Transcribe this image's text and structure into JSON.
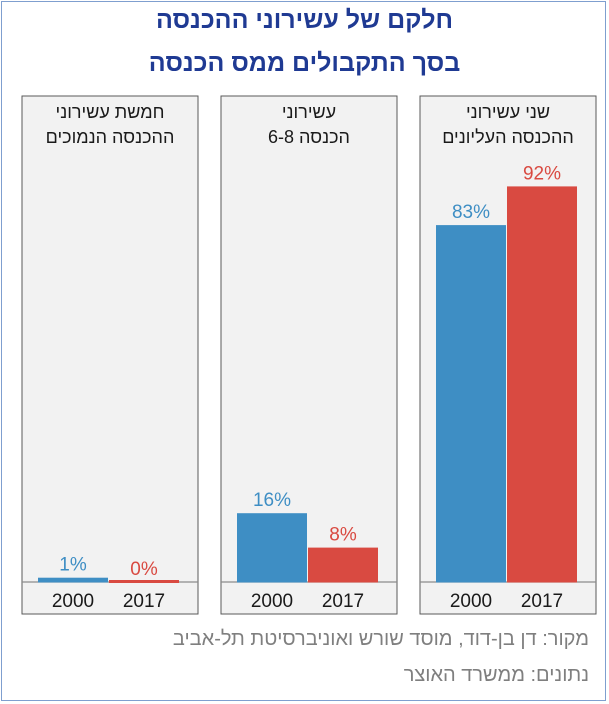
{
  "chart_data": {
    "type": "bar",
    "title_lines": [
      "חלקם של עשירוני ההכנסה",
      "בסך התקבולים ממס הכנסה"
    ],
    "categories": [
      "2000",
      "2017"
    ],
    "groups": [
      {
        "title_lines": [
          "חמשת עשירוני",
          "ההכנסה הנמוכים"
        ],
        "values": [
          1,
          0
        ],
        "labels": [
          "1%",
          "0%"
        ]
      },
      {
        "title_lines": [
          "עשירוני",
          "הכנסה 6-8"
        ],
        "values": [
          16,
          8
        ],
        "labels": [
          "16%",
          "8%"
        ]
      },
      {
        "title_lines": [
          "שני עשירוני",
          "ההכנסה העליונים"
        ],
        "values": [
          83,
          92
        ],
        "labels": [
          "83%",
          "92%"
        ]
      }
    ],
    "series_colors": {
      "2000": "#3e8ec4",
      "2017": "#d94a41"
    },
    "ylim": [
      0,
      100
    ],
    "grid": false
  },
  "footer": {
    "source": "מקור:  דן בן-דוד, מוסד שורש ואוניברסיטת תל-אביב",
    "data": "נתונים: ממשרד האוצר"
  },
  "colors": {
    "title": "#1f3a93",
    "footer": "#7f7f7f",
    "border": "#7f9fcf",
    "panel": "#f2f2f2"
  }
}
